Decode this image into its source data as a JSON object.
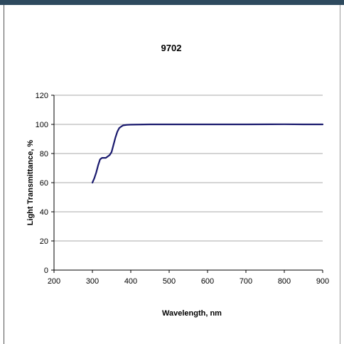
{
  "colors": {
    "top_bar": "#2e4a5e",
    "series_line": "#1a1a6e",
    "grid": "#a8a8a8",
    "axis": "#000000"
  },
  "chart_data": {
    "type": "line",
    "title": "9702",
    "xlabel": "Wavelength, nm",
    "ylabel": "Light Transmittance, %",
    "xlim": [
      200,
      900
    ],
    "ylim": [
      0,
      120
    ],
    "xticks": [
      200,
      300,
      400,
      500,
      600,
      700,
      800,
      900
    ],
    "yticks": [
      0,
      20,
      40,
      60,
      80,
      100,
      120
    ],
    "grid": "horizontal",
    "legend": "none",
    "series": [
      {
        "x": [
          300,
          305,
          310,
          315,
          320,
          325,
          330,
          335,
          340,
          345,
          350,
          355,
          360,
          365,
          370,
          375,
          380,
          390,
          400,
          450,
          500,
          600,
          700,
          800,
          850,
          900
        ],
        "y": [
          60,
          63,
          67,
          72,
          76,
          77,
          77,
          77,
          78,
          79,
          81,
          86,
          91,
          95,
          97.5,
          98.5,
          99.3,
          99.7,
          99.8,
          100,
          100,
          100,
          100,
          100.1,
          100,
          100
        ]
      }
    ]
  }
}
